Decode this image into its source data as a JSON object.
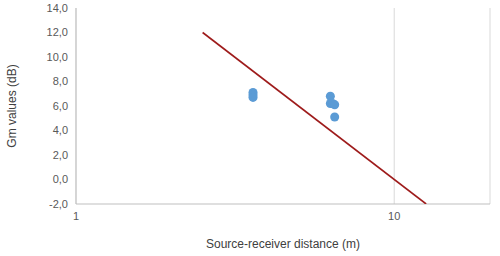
{
  "chart_data": {
    "type": "scatter",
    "x_label": "Source-receiver distance (m)",
    "y_label": "Gm values (dB)",
    "log": "x",
    "grid": "x",
    "xlim": [
      1,
      20
    ],
    "xticks": [
      1,
      10
    ],
    "ylim": [
      -2,
      14
    ],
    "yticks": [
      {
        "value": -2,
        "label": "-2,0"
      },
      {
        "value": 0,
        "label": "0,0"
      },
      {
        "value": 2,
        "label": "2,0"
      },
      {
        "value": 4,
        "label": "4,0"
      },
      {
        "value": 6,
        "label": "6,0"
      },
      {
        "value": 8,
        "label": "8,0"
      },
      {
        "value": 10,
        "label": "10,0"
      },
      {
        "value": 12,
        "label": "12,0"
      },
      {
        "value": 14,
        "label": "14,0"
      }
    ],
    "series": [
      {
        "type": "scatter",
        "color": "#5b9bd5",
        "marker": "circle",
        "x": [
          3.6,
          3.6,
          3.6,
          6.3,
          6.3,
          6.4,
          6.5,
          6.5
        ],
        "values": [
          7.1,
          6.9,
          6.7,
          6.8,
          6.2,
          6.2,
          6.1,
          5.1
        ]
      },
      {
        "type": "line",
        "color": "#9e1b1b",
        "line_style": "solid",
        "x": [
          2.5,
          12.6
        ],
        "values": [
          12,
          -2
        ]
      }
    ]
  }
}
